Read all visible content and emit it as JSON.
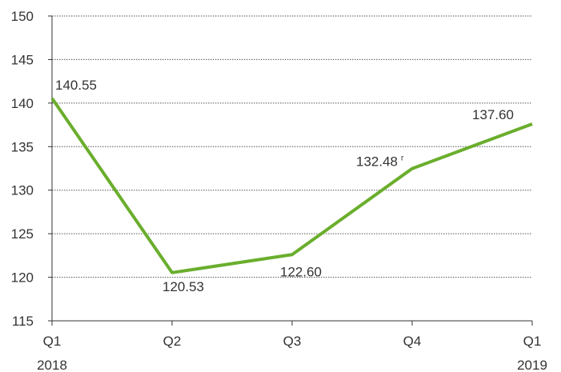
{
  "chart_data": {
    "type": "line",
    "categories": [
      "Q1",
      "Q2",
      "Q3",
      "Q4",
      "Q1"
    ],
    "year_labels": [
      "2018",
      "",
      "",
      "",
      "2019"
    ],
    "values": [
      140.55,
      120.53,
      122.6,
      132.48,
      137.6
    ],
    "data_labels": [
      "140.55",
      "120.53",
      "122.60",
      "132.48",
      "137.60"
    ],
    "revision_marks": [
      "",
      "",
      "",
      "r",
      ""
    ],
    "ylim": [
      115,
      150
    ],
    "yticks": [
      115,
      120,
      125,
      130,
      135,
      140,
      145,
      150
    ],
    "grid": true,
    "line_color": "#6aae2d",
    "grid_color": "#555555",
    "axis_color": "#333333"
  }
}
